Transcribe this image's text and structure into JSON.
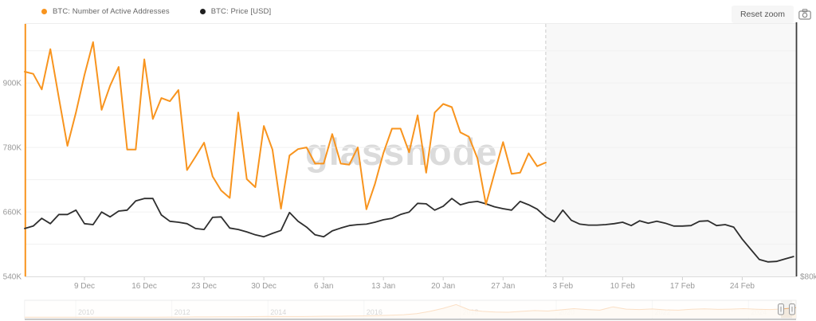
{
  "legend": {
    "items": [
      {
        "label": "BTC: Number of Active Addresses",
        "color": "#f8941e"
      },
      {
        "label": "BTC: Price [USD]",
        "color": "#1f1f1f"
      }
    ]
  },
  "toolbar": {
    "reset_zoom_label": "Reset zoom",
    "camera_icon": "camera-icon"
  },
  "watermark": "glassnode",
  "chart_data": {
    "type": "line",
    "title": "",
    "grid": "horizontal",
    "legend_position": "top-left",
    "days_total": 90.4,
    "x_ticks": [
      {
        "label": "9 Dec",
        "day": 7
      },
      {
        "label": "16 Dec",
        "day": 14
      },
      {
        "label": "23 Dec",
        "day": 21
      },
      {
        "label": "30 Dec",
        "day": 28
      },
      {
        "label": "6 Jan",
        "day": 35
      },
      {
        "label": "13 Jan",
        "day": 42
      },
      {
        "label": "20 Jan",
        "day": 49
      },
      {
        "label": "27 Jan",
        "day": 56
      },
      {
        "label": "3 Feb",
        "day": 63
      },
      {
        "label": "10 Feb",
        "day": 70
      },
      {
        "label": "17 Feb",
        "day": 77
      },
      {
        "label": "24 Feb",
        "day": 84
      }
    ],
    "y_left_axis": {
      "min": 540,
      "max": 1010,
      "gridline_step": 60,
      "ticks": [
        {
          "label": "540K",
          "value": 540
        },
        {
          "label": "660K",
          "value": 660
        },
        {
          "label": "780K",
          "value": 780
        },
        {
          "label": "900K",
          "value": 900
        }
      ]
    },
    "y_right_axis": {
      "min": 80,
      "max": 132.2,
      "ticks": [
        {
          "label": "$80k",
          "value": 80
        }
      ]
    },
    "forecast_band_start_day": 61,
    "series": [
      {
        "name": "BTC: Number of Active Addresses",
        "color": "#f8941e",
        "axis": "left",
        "unit": "thousand addresses",
        "start_day": 0,
        "values": [
          921,
          917,
          888,
          963,
          872,
          783,
          845,
          915,
          976,
          850,
          895,
          930,
          776,
          776,
          944,
          833,
          872,
          866,
          887,
          738,
          763,
          789,
          726,
          700,
          686,
          845,
          721,
          706,
          820,
          776,
          666,
          765,
          777,
          780,
          750,
          750,
          805,
          750,
          748,
          780,
          665,
          712,
          770,
          815,
          815,
          771,
          840,
          733,
          845,
          861,
          855,
          808,
          800,
          760,
          674,
          732,
          790,
          731,
          733,
          769,
          745,
          752
        ]
      },
      {
        "name": "BTC: Price [USD]",
        "color": "#2e2e2e",
        "axis": "right",
        "unit": "thousand USD",
        "start_day": 0,
        "values": [
          89.9,
          90.4,
          92.0,
          90.9,
          92.8,
          92.8,
          93.7,
          90.9,
          90.7,
          93.3,
          92.3,
          93.5,
          93.7,
          95.6,
          96.1,
          96.1,
          92.7,
          91.4,
          91.2,
          90.9,
          89.9,
          89.7,
          92.2,
          92.3,
          90.0,
          89.7,
          89.2,
          88.6,
          88.2,
          88.9,
          89.5,
          93.2,
          91.4,
          90.2,
          88.6,
          88.2,
          89.4,
          90.0,
          90.5,
          90.7,
          90.8,
          91.2,
          91.7,
          92.0,
          92.8,
          93.3,
          95.1,
          95.0,
          93.7,
          94.5,
          96.1,
          94.8,
          95.3,
          95.5,
          95.0,
          94.4,
          94.0,
          93.7,
          95.5,
          94.8,
          93.9,
          92.3,
          91.3,
          93.7,
          91.6,
          90.8,
          90.6,
          90.6,
          90.7,
          90.9,
          91.2,
          90.5,
          91.5,
          91.0,
          91.4,
          91.0,
          90.4,
          90.4,
          90.5,
          91.4,
          91.5,
          90.5,
          90.7,
          90.2,
          87.7,
          85.6,
          83.5,
          83.0,
          83.1,
          83.6,
          84.1
        ]
      }
    ]
  },
  "navigator": {
    "year_labels": [
      {
        "label": "2010",
        "year": 2010
      },
      {
        "label": "2012",
        "year": 2012
      },
      {
        "label": "2014",
        "year": 2014
      },
      {
        "label": "2016",
        "year": 2016
      },
      {
        "label": "2018",
        "year": 2018
      },
      {
        "label": "2020",
        "year": 2020
      },
      {
        "label": "2022",
        "year": 2022
      },
      {
        "label": "2024",
        "year": 2024
      }
    ],
    "spark_values": [
      1,
      1,
      1,
      1,
      1,
      1,
      1,
      1,
      1,
      1,
      1,
      2,
      2,
      3,
      3,
      4,
      4,
      5,
      6,
      7,
      6,
      6,
      7,
      8,
      8,
      9,
      10,
      12,
      14,
      18,
      25,
      40,
      60,
      85,
      50,
      40,
      36,
      34,
      40,
      45,
      42,
      50,
      58,
      52,
      48,
      70,
      55,
      52,
      56,
      50,
      48,
      54,
      57,
      53,
      55,
      58,
      54,
      52,
      56,
      65
    ],
    "spark_color": "#f5b06e"
  }
}
